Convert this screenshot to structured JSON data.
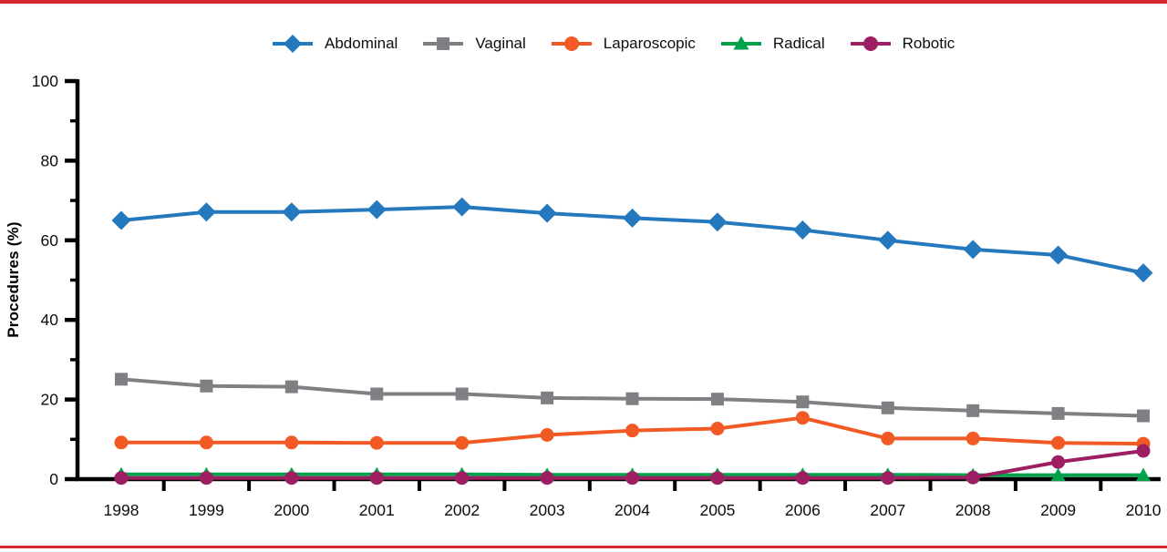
{
  "figure": {
    "background": "#FFFFFF",
    "top_rule_color": "#D7282F",
    "bottom_rule_color": "#D7282F",
    "axis_color": "#000000",
    "tick_label_color": "#0d0d0d"
  },
  "chart_data": {
    "type": "line",
    "title": "",
    "xlabel": "",
    "ylabel": "Procedures (%)",
    "ylim": [
      0,
      100
    ],
    "y_major_ticks": [
      0,
      20,
      40,
      60,
      80,
      100
    ],
    "y_minor_ticks": [
      10,
      30,
      50,
      70,
      90
    ],
    "grid": "off",
    "legend_position": "top",
    "x": [
      1998,
      1999,
      2000,
      2001,
      2002,
      2003,
      2004,
      2005,
      2006,
      2007,
      2008,
      2009,
      2010
    ],
    "x_tick_labels": [
      "1998",
      "1999",
      "2000",
      "2001",
      "2002",
      "2003",
      "2004",
      "2005",
      "2006",
      "2007",
      "2008",
      "2009",
      "2010"
    ],
    "series": [
      {
        "name": "Abdominal",
        "marker": "diamond",
        "color": "#2478BD",
        "values": [
          65.0,
          67.1,
          67.1,
          67.7,
          68.4,
          66.8,
          65.6,
          64.6,
          62.6,
          60.0,
          57.7,
          56.3,
          51.8
        ]
      },
      {
        "name": "Vaginal",
        "marker": "square",
        "color": "#7F8083",
        "values": [
          25.1,
          23.4,
          23.2,
          21.4,
          21.4,
          20.4,
          20.2,
          20.1,
          19.4,
          17.9,
          17.2,
          16.5,
          15.9
        ]
      },
      {
        "name": "Laparoscopic",
        "marker": "circle",
        "color": "#F15A24",
        "values": [
          9.2,
          9.2,
          9.2,
          9.1,
          9.1,
          11.1,
          12.2,
          12.7,
          15.4,
          10.2,
          10.2,
          9.1,
          8.9
        ]
      },
      {
        "name": "Radical",
        "marker": "triangle",
        "color": "#00A14B",
        "values": [
          1.2,
          1.2,
          1.2,
          1.2,
          1.2,
          1.1,
          1.1,
          1.1,
          1.1,
          1.1,
          1.0,
          1.0,
          1.0
        ]
      },
      {
        "name": "Robotic",
        "marker": "circle",
        "color": "#9E1E62",
        "values": [
          0.3,
          0.3,
          0.3,
          0.3,
          0.3,
          0.3,
          0.3,
          0.3,
          0.3,
          0.3,
          0.4,
          4.3,
          7.1
        ]
      }
    ]
  }
}
